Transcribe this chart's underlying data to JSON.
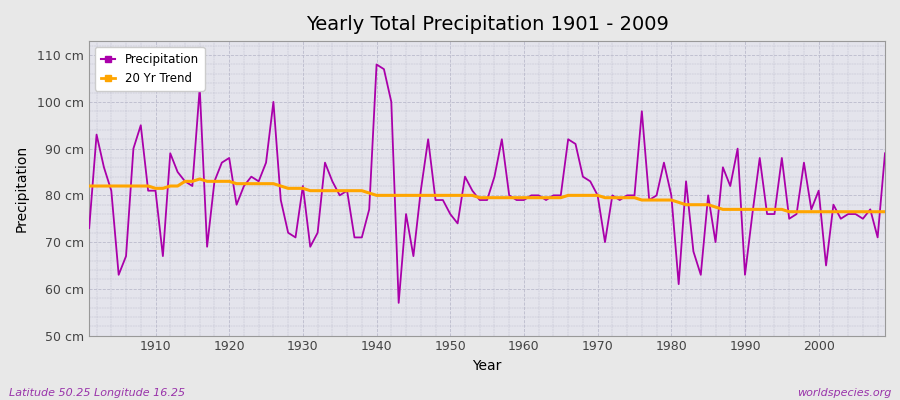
{
  "title": "Yearly Total Precipitation 1901 - 2009",
  "xlabel": "Year",
  "ylabel": "Precipitation",
  "subtitle": "Latitude 50.25 Longitude 16.25",
  "watermark": "worldspecies.org",
  "ylim": [
    50,
    110
  ],
  "ylim_top": 113,
  "yticks": [
    50,
    60,
    70,
    80,
    90,
    100,
    110
  ],
  "ytick_labels": [
    "50 cm",
    "60 cm",
    "70 cm",
    "80 cm",
    "90 cm",
    "100 cm",
    "110 cm"
  ],
  "xticks": [
    1910,
    1920,
    1930,
    1940,
    1950,
    1960,
    1970,
    1980,
    1990,
    2000
  ],
  "xlim": [
    1901,
    2009
  ],
  "precip_color": "#AA00AA",
  "trend_color": "#FFA500",
  "fig_bg_color": "#E8E8E8",
  "plot_bg_color": "#E4E4EC",
  "grid_color": "#BBBBCC",
  "spine_color": "#999999",
  "years": [
    1901,
    1902,
    1903,
    1904,
    1905,
    1906,
    1907,
    1908,
    1909,
    1910,
    1911,
    1912,
    1913,
    1914,
    1915,
    1916,
    1917,
    1918,
    1919,
    1920,
    1921,
    1922,
    1923,
    1924,
    1925,
    1926,
    1927,
    1928,
    1929,
    1930,
    1931,
    1932,
    1933,
    1934,
    1935,
    1936,
    1937,
    1938,
    1939,
    1940,
    1941,
    1942,
    1943,
    1944,
    1945,
    1946,
    1947,
    1948,
    1949,
    1950,
    1951,
    1952,
    1953,
    1954,
    1955,
    1956,
    1957,
    1958,
    1959,
    1960,
    1961,
    1962,
    1963,
    1964,
    1965,
    1966,
    1967,
    1968,
    1969,
    1970,
    1971,
    1972,
    1973,
    1974,
    1975,
    1976,
    1977,
    1978,
    1979,
    1980,
    1981,
    1982,
    1983,
    1984,
    1985,
    1986,
    1987,
    1988,
    1989,
    1990,
    1991,
    1992,
    1993,
    1994,
    1995,
    1996,
    1997,
    1998,
    1999,
    2000,
    2001,
    2002,
    2003,
    2004,
    2005,
    2006,
    2007,
    2008,
    2009
  ],
  "precipitation": [
    73,
    93,
    86,
    81,
    63,
    67,
    90,
    95,
    81,
    81,
    67,
    89,
    85,
    83,
    82,
    103,
    69,
    83,
    87,
    88,
    78,
    82,
    84,
    83,
    87,
    100,
    79,
    72,
    71,
    82,
    69,
    72,
    87,
    83,
    80,
    81,
    71,
    71,
    77,
    108,
    107,
    100,
    57,
    76,
    67,
    81,
    92,
    79,
    79,
    76,
    74,
    84,
    81,
    79,
    79,
    84,
    92,
    80,
    79,
    79,
    80,
    80,
    79,
    80,
    80,
    92,
    91,
    84,
    83,
    80,
    70,
    80,
    79,
    80,
    80,
    98,
    79,
    80,
    87,
    80,
    61,
    83,
    68,
    63,
    80,
    70,
    86,
    82,
    90,
    63,
    76,
    88,
    76,
    76,
    88,
    75,
    76,
    87,
    77,
    81,
    65,
    78,
    75,
    76,
    76,
    75,
    77,
    71,
    89
  ],
  "trend": [
    82.0,
    82.0,
    82.0,
    82.0,
    82.0,
    82.0,
    82.0,
    82.0,
    82.0,
    81.5,
    81.5,
    82.0,
    82.0,
    83.0,
    83.0,
    83.5,
    83.0,
    83.0,
    83.0,
    83.0,
    82.5,
    82.5,
    82.5,
    82.5,
    82.5,
    82.5,
    82.0,
    81.5,
    81.5,
    81.5,
    81.0,
    81.0,
    81.0,
    81.0,
    81.0,
    81.0,
    81.0,
    81.0,
    80.5,
    80.0,
    80.0,
    80.0,
    80.0,
    80.0,
    80.0,
    80.0,
    80.0,
    80.0,
    80.0,
    80.0,
    80.0,
    80.0,
    80.0,
    79.5,
    79.5,
    79.5,
    79.5,
    79.5,
    79.5,
    79.5,
    79.5,
    79.5,
    79.5,
    79.5,
    79.5,
    80.0,
    80.0,
    80.0,
    80.0,
    80.0,
    79.5,
    79.5,
    79.5,
    79.5,
    79.5,
    79.0,
    79.0,
    79.0,
    79.0,
    79.0,
    78.5,
    78.0,
    78.0,
    78.0,
    78.0,
    77.5,
    77.0,
    77.0,
    77.0,
    77.0,
    77.0,
    77.0,
    77.0,
    77.0,
    77.0,
    76.5,
    76.5,
    76.5,
    76.5,
    76.5,
    76.5,
    76.5,
    76.5,
    76.5,
    76.5,
    76.5,
    76.5,
    76.5,
    76.5
  ]
}
